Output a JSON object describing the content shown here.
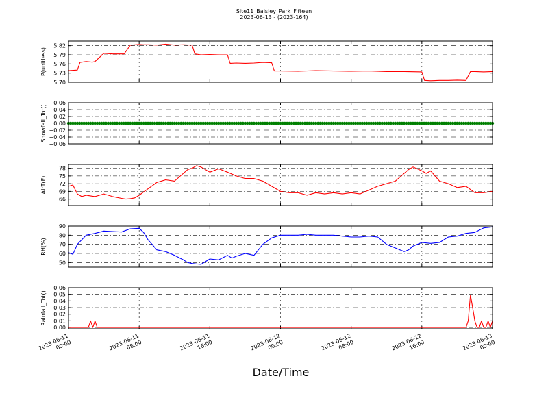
{
  "title": "Site11_Baisley_Park_Fifteen",
  "subtitle": "2023-06-13 - (2023-164)",
  "xlabel": "Date/Time",
  "x_ticks": [
    "2023-06-11\n00:00",
    "2023-06-11\n08:00",
    "2023-06-11\n16:00",
    "2023-06-12\n00:00",
    "2023-06-12\n08:00",
    "2023-06-12\n16:00",
    "2023-06-13\n00:00"
  ],
  "chart_data": [
    {
      "type": "line",
      "ylabel": "P(unitless)",
      "ylim": [
        5.7,
        5.835
      ],
      "yticks": [
        "5.70",
        "5.73",
        "5.76",
        "5.79",
        "5.82"
      ],
      "grid": true,
      "color": "#ff0000",
      "x_range_hours": [
        0,
        48
      ],
      "x": [
        0,
        1,
        1.3,
        2,
        2.7,
        3,
        4,
        5,
        6,
        6.3,
        7,
        8,
        8.5,
        9,
        10,
        11,
        12,
        13,
        14,
        14.3,
        15,
        16,
        17,
        18,
        18.3,
        19,
        20,
        21,
        22,
        23,
        23.3,
        24,
        26,
        28,
        30,
        32,
        34,
        36,
        38,
        40,
        40.3,
        41,
        42,
        43,
        44,
        45,
        45.5,
        46,
        47,
        48
      ],
      "y": [
        5.738,
        5.74,
        5.765,
        5.768,
        5.766,
        5.768,
        5.795,
        5.793,
        5.793,
        5.793,
        5.822,
        5.824,
        5.823,
        5.823,
        5.822,
        5.825,
        5.822,
        5.823,
        5.822,
        5.793,
        5.79,
        5.791,
        5.79,
        5.79,
        5.762,
        5.763,
        5.762,
        5.763,
        5.765,
        5.764,
        5.737,
        5.737,
        5.736,
        5.738,
        5.737,
        5.736,
        5.737,
        5.735,
        5.735,
        5.734,
        5.706,
        5.705,
        5.706,
        5.706,
        5.707,
        5.706,
        5.735,
        5.735,
        5.734,
        5.735
      ]
    },
    {
      "type": "scatter",
      "ylabel": "Snowfall_Tot()",
      "ylim": [
        -0.06,
        0.06
      ],
      "yticks": [
        "−0.06",
        "−0.04",
        "−0.02",
        "0.00",
        "0.02",
        "0.04",
        "0.06"
      ],
      "grid": true,
      "color": "#008000",
      "x_range_hours": [
        0,
        48
      ],
      "x_start": 0,
      "x_end": 48,
      "x_step": 0.25,
      "constant_value": 0.0
    },
    {
      "type": "line",
      "ylabel": "AirT(F)",
      "ylim": [
        63.5,
        79.5
      ],
      "yticks": [
        "66",
        "69",
        "72",
        "75",
        "78"
      ],
      "grid": true,
      "color": "#ff0000",
      "x_range_hours": [
        0,
        48
      ],
      "x": [
        0,
        0.5,
        1,
        1.5,
        2,
        3,
        4,
        5,
        6,
        6.5,
        7,
        7.5,
        8,
        9,
        10,
        11,
        12,
        13,
        13.5,
        14,
        14.5,
        15,
        16,
        17,
        18,
        19,
        20,
        21,
        22,
        23,
        24,
        25,
        26,
        27,
        28,
        29,
        30,
        31,
        32,
        33,
        34,
        35,
        36,
        37,
        38,
        38.5,
        39,
        40,
        40.5,
        41,
        42,
        43,
        44,
        45,
        46,
        47,
        48
      ],
      "y": [
        71,
        71.5,
        68,
        67,
        67.5,
        67,
        68,
        67,
        66.3,
        66,
        66.2,
        66.5,
        67.5,
        70,
        72.5,
        73.5,
        73,
        76,
        77.5,
        78,
        79,
        78.5,
        76.5,
        77.8,
        76.5,
        75,
        74,
        74,
        73,
        71,
        69,
        68.5,
        68.5,
        67.5,
        68.5,
        68,
        68.5,
        68,
        68.5,
        68,
        69.5,
        71,
        72,
        73,
        76,
        77.5,
        78.5,
        77,
        76,
        77,
        73,
        72,
        70.5,
        71,
        68.5,
        68.5,
        69
      ]
    },
    {
      "type": "line",
      "ylabel": "RH(%)",
      "ylim": [
        45,
        90
      ],
      "yticks": [
        "50",
        "60",
        "70",
        "80",
        "90"
      ],
      "grid": true,
      "color": "#0000ff",
      "x_range_hours": [
        0,
        48
      ],
      "x": [
        0,
        0.5,
        1,
        2,
        3,
        4,
        5,
        6,
        7,
        8,
        8.5,
        9,
        10,
        11,
        12,
        13,
        13.5,
        14,
        15,
        16,
        17,
        18,
        18.5,
        19,
        20,
        21,
        22,
        23,
        24,
        25,
        26,
        27,
        28,
        29,
        30,
        31,
        32,
        33,
        34,
        35,
        36,
        37,
        38,
        38.5,
        39,
        40,
        41,
        42,
        43,
        44,
        45,
        46,
        47,
        48
      ],
      "y": [
        61,
        59,
        70,
        80,
        82,
        84.5,
        84,
        83.5,
        87,
        87.5,
        83,
        75,
        64,
        62,
        58,
        53,
        50,
        49,
        48,
        54,
        53,
        58,
        55,
        57,
        60,
        58,
        70,
        77,
        80,
        80,
        80,
        81,
        80,
        80,
        80,
        79,
        78,
        78,
        79,
        78,
        70,
        66,
        62,
        64,
        68,
        72,
        71,
        72,
        78,
        79,
        82,
        83,
        88,
        89
      ]
    },
    {
      "type": "line",
      "ylabel": "Rainfall_Tot()",
      "ylim": [
        -0.002,
        0.06
      ],
      "yticks": [
        "0.00",
        "0.01",
        "0.02",
        "0.03",
        "0.04",
        "0.05",
        "0.06"
      ],
      "grid": true,
      "color": "#ff0000",
      "x_range_hours": [
        0,
        48
      ],
      "x": [
        0,
        2.25,
        2.5,
        2.75,
        3,
        3.25,
        45,
        45.25,
        45.5,
        45.75,
        46,
        46.25,
        46.5,
        46.75,
        47,
        47.25,
        47.5,
        47.75,
        48
      ],
      "y": [
        0,
        0,
        0.01,
        0,
        0.01,
        0,
        0,
        0.01,
        0.049,
        0.03,
        0.01,
        0,
        0,
        0.01,
        0,
        0,
        0.01,
        0,
        0.01
      ]
    }
  ]
}
